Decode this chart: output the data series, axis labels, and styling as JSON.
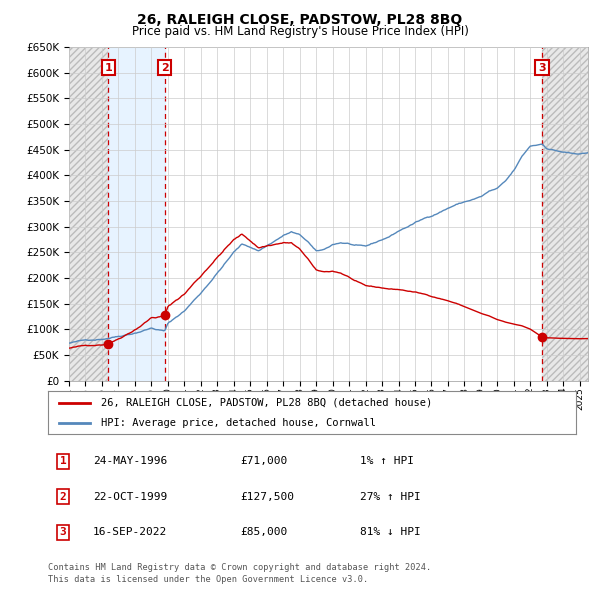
{
  "title": "26, RALEIGH CLOSE, PADSTOW, PL28 8BQ",
  "subtitle": "Price paid vs. HM Land Registry's House Price Index (HPI)",
  "legend_line1": "26, RALEIGH CLOSE, PADSTOW, PL28 8BQ (detached house)",
  "legend_line2": "HPI: Average price, detached house, Cornwall",
  "footer1": "Contains HM Land Registry data © Crown copyright and database right 2024.",
  "footer2": "This data is licensed under the Open Government Licence v3.0.",
  "sales": [
    {
      "label": "1",
      "date": "24-MAY-1996",
      "price": 71000,
      "year": 1996.39,
      "hpi_pct": "1% ↑ HPI"
    },
    {
      "label": "2",
      "date": "22-OCT-1999",
      "price": 127500,
      "year": 1999.81,
      "hpi_pct": "27% ↑ HPI"
    },
    {
      "label": "3",
      "date": "16-SEP-2022",
      "price": 85000,
      "year": 2022.71,
      "hpi_pct": "81% ↓ HPI"
    }
  ],
  "xlim": [
    1994.0,
    2025.5
  ],
  "ylim": [
    0,
    650000
  ],
  "yticks": [
    0,
    50000,
    100000,
    150000,
    200000,
    250000,
    300000,
    350000,
    400000,
    450000,
    500000,
    550000,
    600000,
    650000
  ],
  "xticks": [
    1994,
    1995,
    1996,
    1997,
    1998,
    1999,
    2000,
    2001,
    2002,
    2003,
    2004,
    2005,
    2006,
    2007,
    2008,
    2009,
    2010,
    2011,
    2012,
    2013,
    2014,
    2015,
    2016,
    2017,
    2018,
    2019,
    2020,
    2021,
    2022,
    2023,
    2024,
    2025
  ],
  "hpi_color": "#5588bb",
  "price_color": "#cc0000",
  "grid_color": "#cccccc",
  "bg_color": "#ffffff",
  "hatch_bg": "#dddddd",
  "sale_bg_color": "#ddeeff",
  "label_box_color": "#cc0000",
  "sale1_year": 1996.39,
  "sale2_year": 1999.81,
  "sale3_year": 2022.71,
  "sale1_price": 71000,
  "sale2_price": 127500,
  "sale3_price": 85000
}
